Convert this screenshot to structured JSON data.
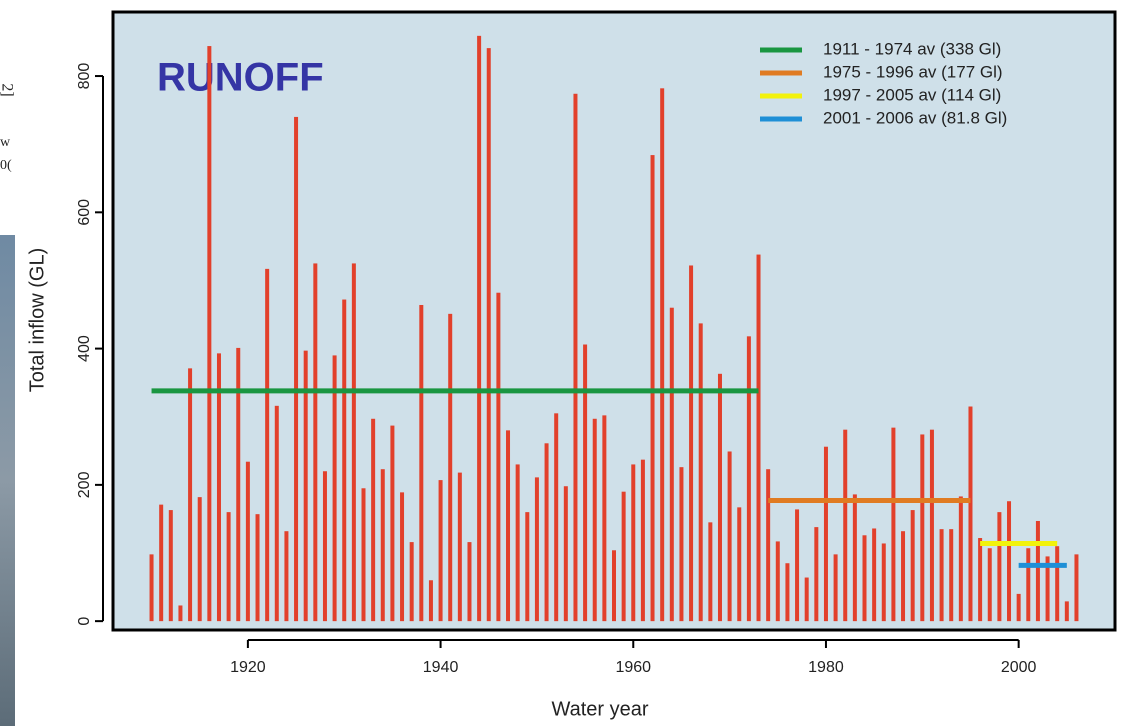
{
  "fragments": [
    "2]",
    "w",
    "0("
  ],
  "chart_data": {
    "type": "bar",
    "title": "RUNOFF",
    "x_label": "Water year",
    "y_label": "Total inflow (GL)",
    "x": [
      1910,
      1911,
      1912,
      1913,
      1914,
      1915,
      1916,
      1917,
      1918,
      1919,
      1920,
      1921,
      1922,
      1923,
      1924,
      1925,
      1926,
      1927,
      1928,
      1929,
      1930,
      1931,
      1932,
      1933,
      1934,
      1935,
      1936,
      1937,
      1938,
      1939,
      1940,
      1941,
      1942,
      1943,
      1944,
      1945,
      1946,
      1947,
      1948,
      1949,
      1950,
      1951,
      1952,
      1953,
      1954,
      1955,
      1956,
      1957,
      1958,
      1959,
      1960,
      1961,
      1962,
      1963,
      1964,
      1965,
      1966,
      1967,
      1968,
      1969,
      1970,
      1971,
      1972,
      1973,
      1974,
      1975,
      1976,
      1977,
      1978,
      1979,
      1980,
      1981,
      1982,
      1983,
      1984,
      1985,
      1986,
      1987,
      1988,
      1989,
      1990,
      1991,
      1992,
      1993,
      1994,
      1995,
      1996,
      1997,
      1998,
      1999,
      2000,
      2001,
      2002,
      2003,
      2004,
      2005,
      2006
    ],
    "values": [
      98,
      171,
      163,
      23,
      371,
      182,
      844,
      393,
      160,
      401,
      234,
      157,
      517,
      316,
      132,
      740,
      397,
      525,
      220,
      390,
      472,
      525,
      195,
      297,
      223,
      287,
      189,
      116,
      464,
      60,
      207,
      451,
      218,
      116,
      859,
      841,
      482,
      280,
      230,
      160,
      211,
      261,
      305,
      198,
      774,
      406,
      297,
      302,
      104,
      190,
      230,
      237,
      684,
      782,
      460,
      226,
      522,
      437,
      145,
      363,
      249,
      167,
      418,
      538,
      223,
      117,
      85,
      164,
      64,
      138,
      256,
      98,
      281,
      186,
      126,
      136,
      114,
      284,
      132,
      163,
      274,
      281,
      135,
      135,
      183,
      315,
      122,
      107,
      160,
      176,
      40,
      107,
      147,
      95,
      110,
      29,
      98
    ],
    "color": "#e2402b",
    "average_lines": [
      {
        "name": "1911 - 1974 av (338 Gl)",
        "color": "#1a9641",
        "x": [
          1910,
          1973
        ],
        "value": 338
      },
      {
        "name": "1975 - 1996 av (177 Gl)",
        "color": "#e07b22",
        "x": [
          1974,
          1995
        ],
        "value": 177
      },
      {
        "name": "1997 - 2005 av (114 Gl)",
        "color": "#f2f20c",
        "x": [
          1996,
          2004
        ],
        "value": 114
      },
      {
        "name": "2001 - 2006 av (81.8 Gl)",
        "color": "#1e8fd6",
        "x": [
          2000,
          2005
        ],
        "value": 81.8
      }
    ],
    "xlim": [
      1906,
      2010
    ],
    "xticks": [
      1920,
      1940,
      1960,
      1980,
      2000
    ],
    "ylim": [
      -13,
      894
    ],
    "yticks": [
      0,
      200,
      400,
      600,
      800
    ],
    "legend": "top-right"
  }
}
